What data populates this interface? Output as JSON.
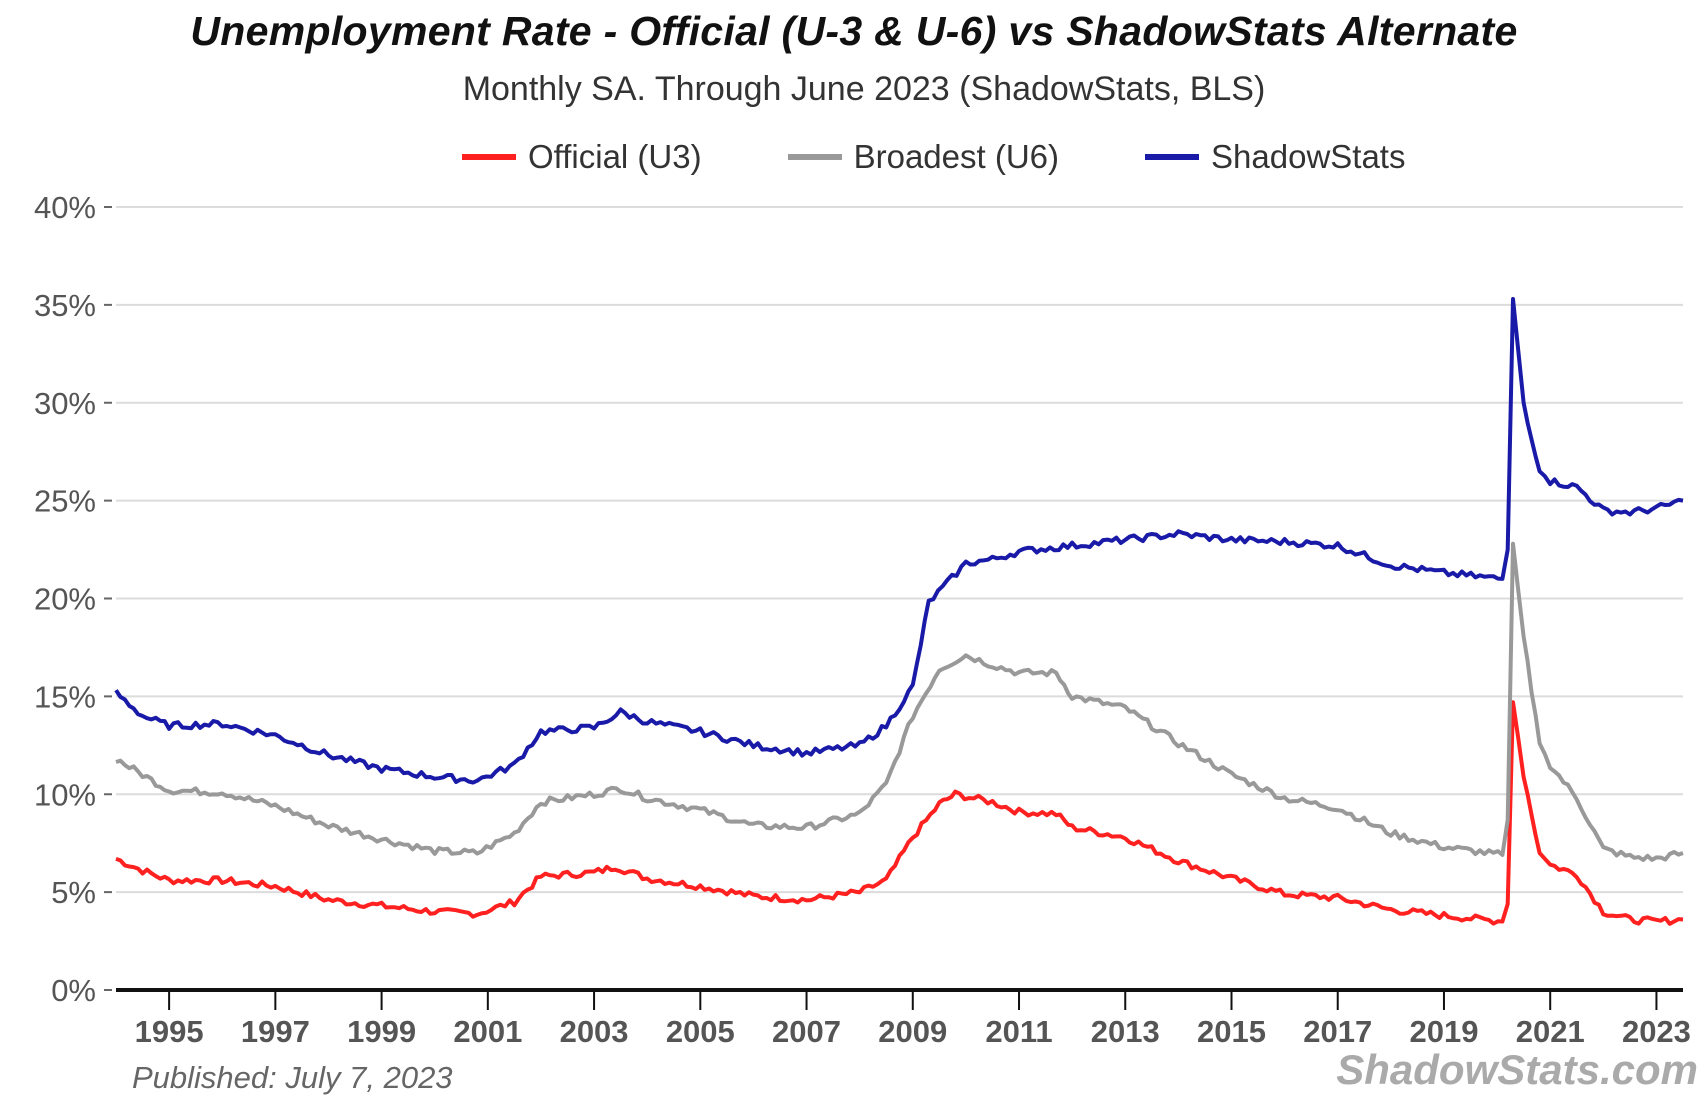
{
  "chart_data": {
    "type": "line",
    "title": "Unemployment Rate - Official (U-3 & U-6) vs ShadowStats Alternate",
    "subtitle": "Monthly SA. Through June 2023  (ShadowStats, BLS)",
    "xlabel": "",
    "ylabel": "",
    "xlim": [
      1994.0,
      2023.5
    ],
    "ylim": [
      0,
      40
    ],
    "y_ticks": [
      0,
      5,
      10,
      15,
      20,
      25,
      30,
      35,
      40
    ],
    "y_tick_labels": [
      "0%",
      "5%",
      "10%",
      "15%",
      "20%",
      "25%",
      "30%",
      "35%",
      "40%"
    ],
    "x_ticks": [
      1995,
      1997,
      1999,
      2001,
      2003,
      2005,
      2007,
      2009,
      2011,
      2013,
      2015,
      2017,
      2019,
      2021,
      2023
    ],
    "x_tick_labels": [
      "1995",
      "1997",
      "1999",
      "2001",
      "2003",
      "2005",
      "2007",
      "2009",
      "2011",
      "2013",
      "2015",
      "2017",
      "2019",
      "2021",
      "2023"
    ],
    "grid": true,
    "legend_position": "top-center",
    "series": [
      {
        "name": "Official (U3)",
        "color": "#ff2020",
        "x": [
          1994.0,
          1994.5,
          1995,
          1996,
          1997,
          1998,
          1999,
          2000,
          2000.8,
          2001.5,
          2002,
          2003,
          2003.4,
          2004,
          2005,
          2006,
          2007,
          2008,
          2008.5,
          2009,
          2009.5,
          2009.8,
          2010.5,
          2011,
          2011.7,
          2012,
          2013,
          2014,
          2015,
          2016,
          2017,
          2018,
          2019,
          2020.1,
          2020.2,
          2020.3,
          2020.5,
          2020.8,
          2021,
          2021.5,
          2022,
          2022.5,
          2023,
          2023.5
        ],
        "y": [
          6.7,
          6.1,
          5.6,
          5.6,
          5.3,
          4.6,
          4.3,
          4.0,
          3.9,
          4.5,
          5.8,
          6.0,
          6.3,
          5.7,
          5.3,
          4.8,
          4.6,
          5.0,
          5.6,
          7.8,
          9.5,
          10.0,
          9.6,
          9.1,
          9.0,
          8.3,
          7.8,
          6.6,
          5.7,
          4.9,
          4.7,
          4.1,
          3.8,
          3.5,
          4.4,
          14.7,
          11.0,
          7.0,
          6.4,
          5.9,
          4.0,
          3.6,
          3.5,
          3.6
        ]
      },
      {
        "name": "Broadest (U6)",
        "color": "#999999",
        "x": [
          1994.0,
          1995,
          1996,
          1997,
          1998,
          1999,
          2000,
          2000.8,
          2001.5,
          2002,
          2003,
          2003.5,
          2004,
          2005,
          2006,
          2007,
          2008,
          2008.5,
          2009,
          2009.5,
          2010,
          2010.5,
          2011,
          2011.7,
          2012,
          2013,
          2014,
          2015,
          2016,
          2017,
          2018,
          2019,
          2020.1,
          2020.2,
          2020.3,
          2020.5,
          2020.8,
          2021,
          2021.5,
          2022,
          2022.5,
          2023,
          2023.5
        ],
        "y": [
          11.8,
          10.2,
          10.1,
          9.4,
          8.4,
          7.7,
          7.1,
          7.0,
          8.0,
          9.6,
          10.0,
          10.3,
          9.8,
          9.2,
          8.4,
          8.3,
          9.0,
          10.5,
          14.0,
          16.4,
          17.1,
          16.6,
          16.2,
          16.2,
          15.0,
          14.4,
          12.6,
          11.0,
          9.8,
          9.3,
          8.0,
          7.3,
          6.9,
          8.7,
          22.8,
          18.0,
          12.6,
          11.5,
          9.8,
          7.2,
          6.8,
          6.7,
          7.0
        ]
      },
      {
        "name": "ShadowStats",
        "color": "#1a1aa8",
        "x": [
          1994.0,
          1994.5,
          1995,
          1996,
          1997,
          1998,
          1999,
          2000,
          2000.8,
          2001.5,
          2002,
          2003,
          2003.5,
          2004,
          2005,
          2006,
          2007,
          2008,
          2008.5,
          2009,
          2009.3,
          2010,
          2010.5,
          2011,
          2012,
          2013,
          2014,
          2015,
          2016,
          2017,
          2018,
          2019,
          2020.1,
          2020.2,
          2020.3,
          2020.5,
          2020.8,
          2021,
          2021.5,
          2022,
          2022.5,
          2023,
          2023.5
        ],
        "y": [
          15.2,
          14.0,
          13.5,
          13.6,
          13.0,
          12.0,
          11.3,
          10.9,
          10.7,
          11.5,
          13.2,
          13.4,
          14.2,
          13.7,
          13.2,
          12.5,
          12.1,
          12.5,
          13.5,
          15.5,
          19.8,
          21.8,
          22.0,
          22.4,
          22.7,
          23.0,
          23.3,
          23.0,
          22.9,
          22.7,
          21.7,
          21.3,
          21.0,
          22.5,
          35.3,
          30.0,
          26.5,
          26.0,
          25.7,
          24.5,
          24.4,
          24.6,
          25.0
        ]
      }
    ],
    "annotations": [
      "Published: July 7, 2023",
      "ShadowStats.com"
    ]
  }
}
